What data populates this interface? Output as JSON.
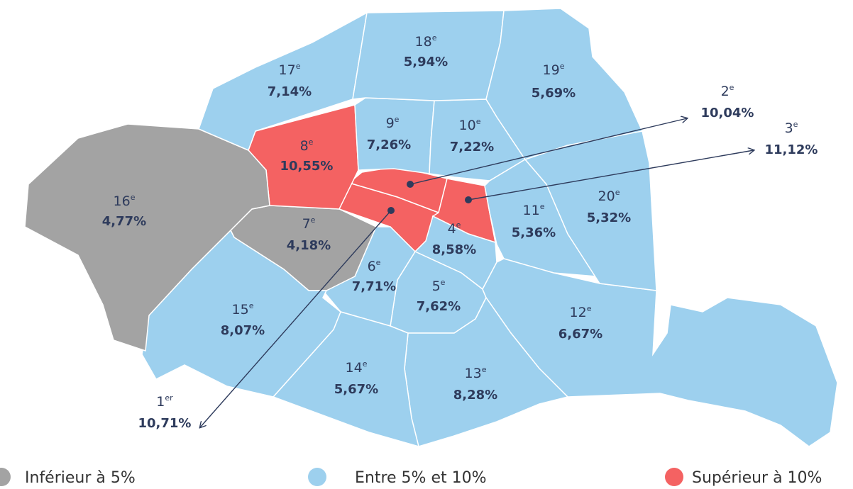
{
  "map": {
    "legend": [
      {
        "label": "Inférieur à 5%",
        "color": "#a3a3a3"
      },
      {
        "label": "Entre 5% et 10%",
        "color": "#9dd0ee"
      },
      {
        "label": "Supérieur à 10%",
        "color": "#f46262"
      }
    ],
    "districts": [
      {
        "number": "1",
        "suffix": "er",
        "value": "10,71%",
        "color": "#f46262"
      },
      {
        "number": "2",
        "suffix": "e",
        "value": "10,04%",
        "color": "#f46262"
      },
      {
        "number": "3",
        "suffix": "e",
        "value": "11,12%",
        "color": "#f46262"
      },
      {
        "number": "4",
        "suffix": "e",
        "value": "8,58%",
        "color": "#9dd0ee"
      },
      {
        "number": "5",
        "suffix": "e",
        "value": "7,62%",
        "color": "#9dd0ee"
      },
      {
        "number": "6",
        "suffix": "e",
        "value": "7,71%",
        "color": "#9dd0ee"
      },
      {
        "number": "7",
        "suffix": "e",
        "value": "4,18%",
        "color": "#a3a3a3"
      },
      {
        "number": "8",
        "suffix": "e",
        "value": "10,55%",
        "color": "#f46262"
      },
      {
        "number": "9",
        "suffix": "e",
        "value": "7,26%",
        "color": "#9dd0ee"
      },
      {
        "number": "10",
        "suffix": "e",
        "value": "7,22%",
        "color": "#9dd0ee"
      },
      {
        "number": "11",
        "suffix": "e",
        "value": "5,36%",
        "color": "#9dd0ee"
      },
      {
        "number": "12",
        "suffix": "e",
        "value": "6,67%",
        "color": "#9dd0ee"
      },
      {
        "number": "13",
        "suffix": "e",
        "value": "8,28%",
        "color": "#9dd0ee"
      },
      {
        "number": "14",
        "suffix": "e",
        "value": "5,67%",
        "color": "#9dd0ee"
      },
      {
        "number": "15",
        "suffix": "e",
        "value": "8,07%",
        "color": "#9dd0ee"
      },
      {
        "number": "16",
        "suffix": "e",
        "value": "4,77%",
        "color": "#a3a3a3"
      },
      {
        "number": "17",
        "suffix": "e",
        "value": "7,14%",
        "color": "#9dd0ee"
      },
      {
        "number": "18",
        "suffix": "e",
        "value": "5,94%",
        "color": "#9dd0ee"
      },
      {
        "number": "19",
        "suffix": "e",
        "value": "5,69%",
        "color": "#9dd0ee"
      },
      {
        "number": "20",
        "suffix": "e",
        "value": "5,32%",
        "color": "#9dd0ee"
      }
    ]
  }
}
